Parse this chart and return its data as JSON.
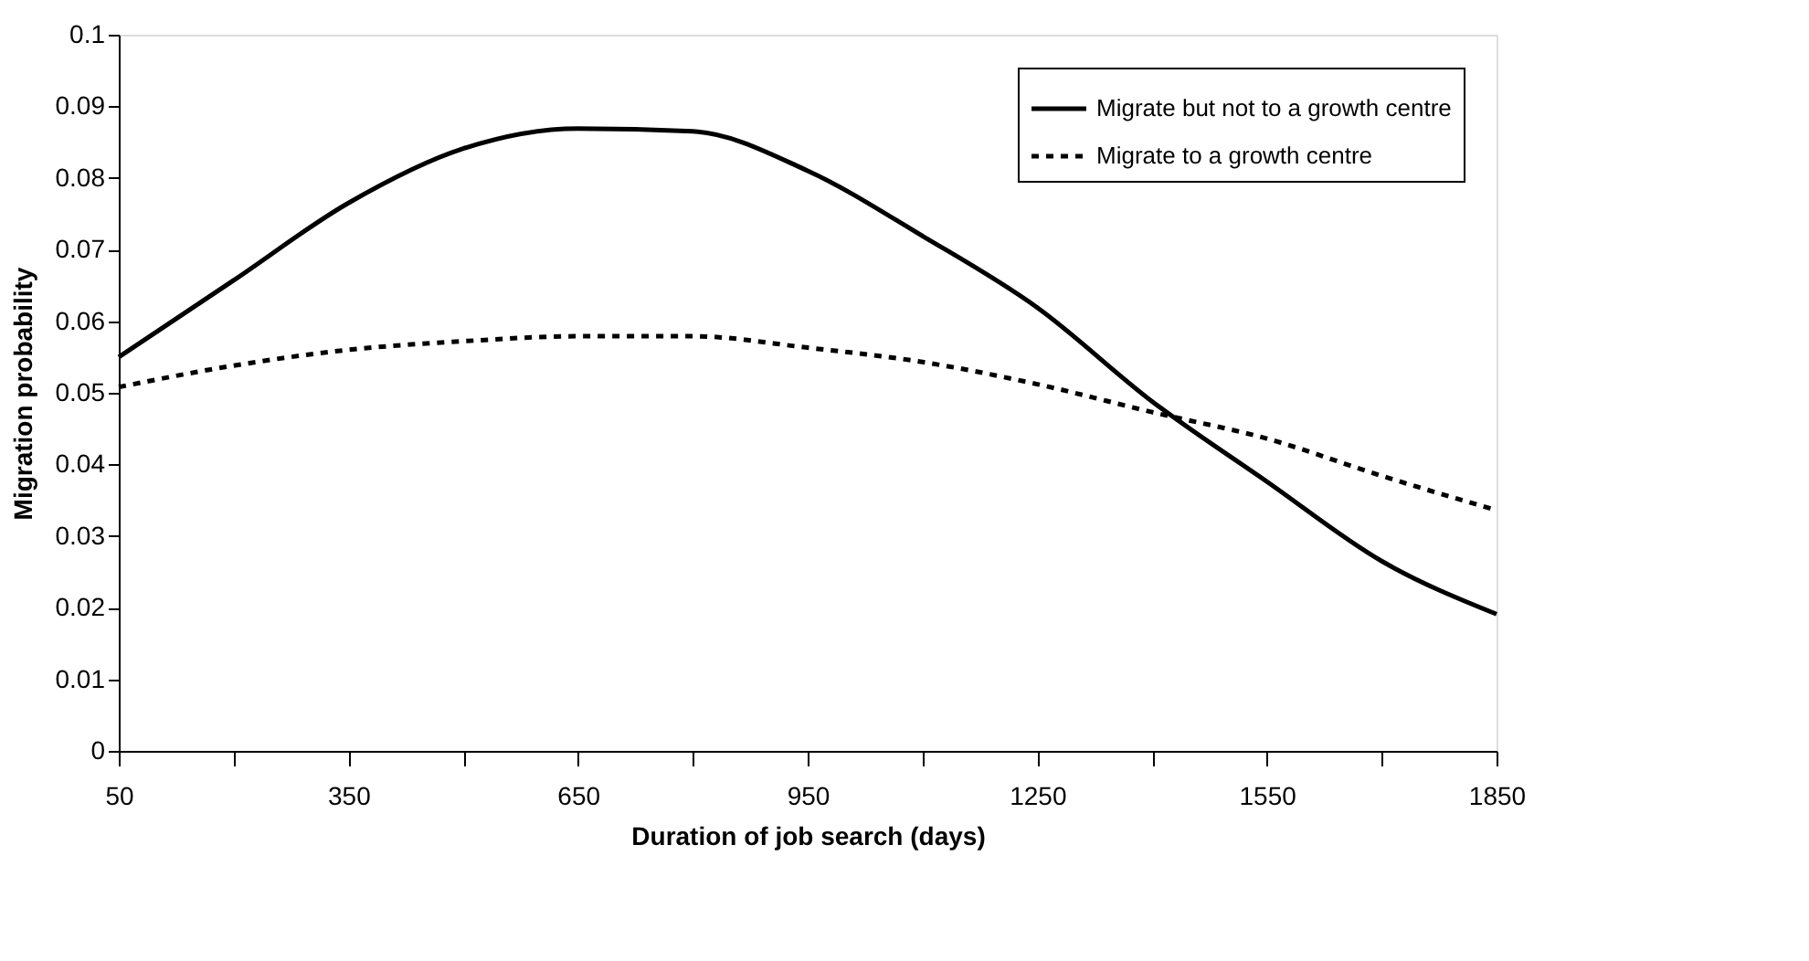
{
  "chart_data": {
    "type": "line",
    "xlabel": "Duration of job search (days)",
    "ylabel": "Migration probability",
    "x": [
      50,
      200,
      350,
      500,
      650,
      800,
      950,
      1100,
      1250,
      1400,
      1550,
      1700,
      1850
    ],
    "series": [
      {
        "name": "Migrate but not to a growth centre",
        "color": "#000000",
        "line_style": "solid",
        "values": [
          0.055,
          0.0657,
          0.0765,
          0.0841,
          0.0869,
          0.0865,
          0.081,
          0.0719,
          0.0619,
          0.0488,
          0.0376,
          0.0265,
          0.0191
        ]
      },
      {
        "name": "Migrate to a growth centre",
        "color": "#000000",
        "line_style": "dashed",
        "values": [
          0.0508,
          0.0538,
          0.056,
          0.0572,
          0.0579,
          0.0579,
          0.0563,
          0.0543,
          0.0512,
          0.0473,
          0.0436,
          0.0384,
          0.0336
        ]
      }
    ],
    "xlim": [
      50,
      1850
    ],
    "xticks": [
      50,
      {
        "value": 200,
        "label": null
      },
      350,
      {
        "value": 500,
        "label": null
      },
      650,
      {
        "value": 800,
        "label": null
      },
      950,
      {
        "value": 1100,
        "label": null
      },
      1250,
      {
        "value": 1400,
        "label": null
      },
      1550,
      {
        "value": 1700,
        "label": null
      },
      1850
    ],
    "ylim": [
      0,
      0.1
    ],
    "yticks": [
      0,
      0.01,
      0.02,
      0.03,
      0.04,
      0.05,
      0.06,
      0.07,
      0.08,
      0.09,
      0.1
    ],
    "grid": false,
    "legend": "top right",
    "marker": "none"
  }
}
